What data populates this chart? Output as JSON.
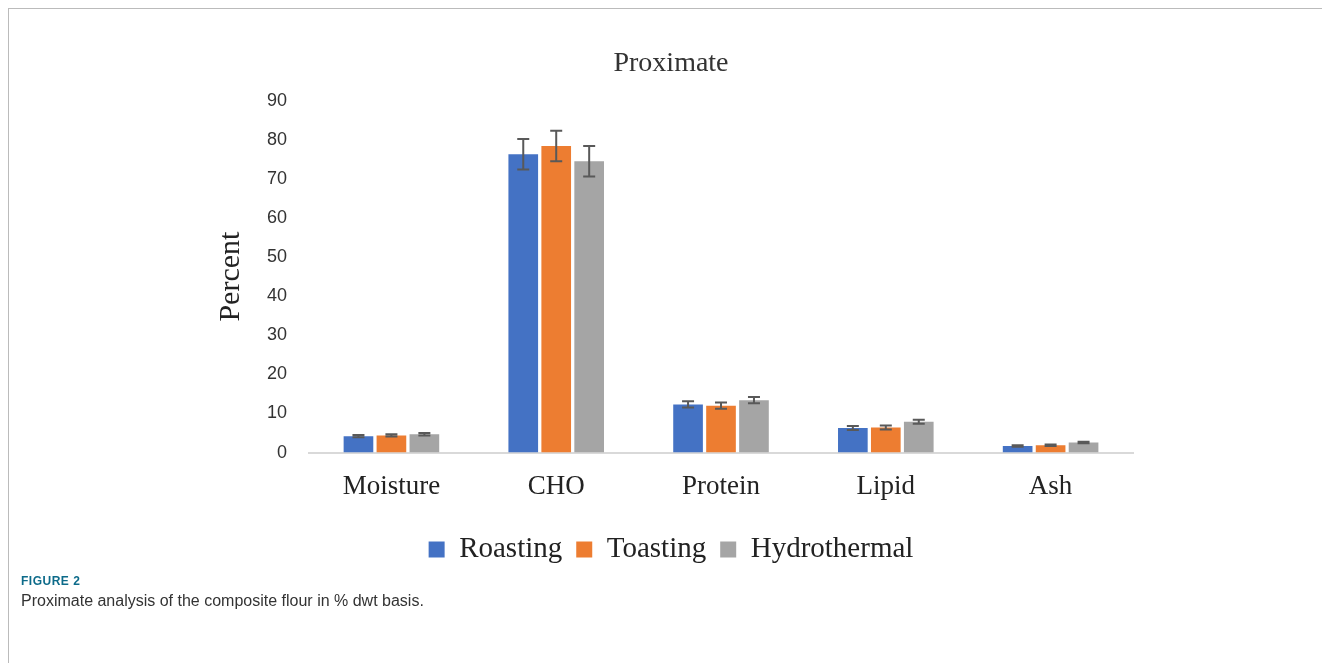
{
  "chart_data": {
    "type": "bar",
    "title": "Proximate",
    "ylabel": "Percent",
    "categories": [
      "Moisture",
      "CHO",
      "Protein",
      "Lipid",
      "Ash"
    ],
    "series": [
      {
        "name": "Roasting",
        "color": "#4472c4",
        "values": [
          4.2,
          76.3,
          12.3,
          6.3,
          1.7
        ],
        "errors": [
          0.3,
          3.9,
          0.8,
          0.5,
          0.2
        ]
      },
      {
        "name": "Toasting",
        "color": "#ed7d31",
        "values": [
          4.4,
          78.4,
          12.0,
          6.4,
          1.9
        ],
        "errors": [
          0.3,
          3.9,
          0.8,
          0.5,
          0.2
        ]
      },
      {
        "name": "Hydrothermal",
        "color": "#a5a5a5",
        "values": [
          4.7,
          74.5,
          13.4,
          7.9,
          2.6
        ],
        "errors": [
          0.3,
          3.9,
          0.8,
          0.5,
          0.2
        ]
      }
    ],
    "ylim": [
      0,
      90
    ],
    "yticks": [
      0,
      10,
      20,
      30,
      40,
      50,
      60,
      70,
      80,
      90
    ],
    "grid": false,
    "legend": "bottom",
    "annotations": [
      "FIGURE 2",
      "Proximate analysis of the composite flour in % dwt basis."
    ]
  }
}
